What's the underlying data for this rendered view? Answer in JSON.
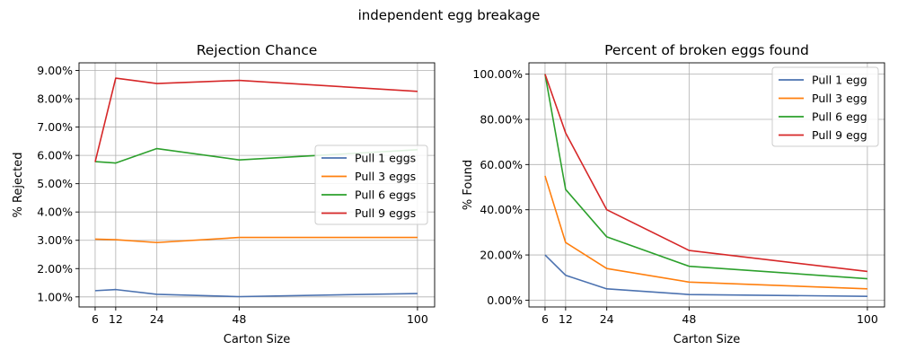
{
  "suptitle": "independent egg breakage",
  "chart_data": [
    {
      "type": "line",
      "title": "Rejection Chance",
      "xlabel": "Carton Size",
      "ylabel": "% Rejected",
      "x": [
        6,
        12,
        24,
        48,
        100
      ],
      "xticks": [
        "6",
        "12",
        "24",
        "48",
        "100"
      ],
      "xlim": [
        1.3,
        105.0
      ],
      "ylim": [
        0.00645,
        0.0927
      ],
      "yticks": [
        "1.00%",
        "2.00%",
        "3.00%",
        "4.00%",
        "5.00%",
        "6.00%",
        "7.00%",
        "8.00%",
        "9.00%"
      ],
      "ytick_values": [
        0.01,
        0.02,
        0.03,
        0.04,
        0.05,
        0.06,
        0.07,
        0.08,
        0.09
      ],
      "grid": true,
      "legend_position": "center-right",
      "series": [
        {
          "name": "Pull 1 eggs",
          "color": "#4c72b0",
          "values": [
            0.0122,
            0.0126,
            0.0109,
            0.0101,
            0.0112
          ]
        },
        {
          "name": "Pull 3 eggs",
          "color": "#ff7f0e",
          "values": [
            0.0304,
            0.0302,
            0.0292,
            0.031,
            0.031
          ]
        },
        {
          "name": "Pull 6 eggs",
          "color": "#2ca02c",
          "values": [
            0.0578,
            0.0573,
            0.0624,
            0.0584,
            0.062
          ]
        },
        {
          "name": "Pull 9 eggs",
          "color": "#d62728",
          "values": [
            0.0577,
            0.0873,
            0.0854,
            0.0865,
            0.0826
          ]
        }
      ]
    },
    {
      "type": "line",
      "title": "Percent of broken eggs found",
      "xlabel": "Carton Size",
      "ylabel": "% Found",
      "x": [
        6,
        12,
        24,
        48,
        100
      ],
      "xticks": [
        "6",
        "12",
        "24",
        "48",
        "100"
      ],
      "xlim": [
        1.3,
        105.0
      ],
      "ylim": [
        -0.03,
        1.05
      ],
      "yticks": [
        "0.00%",
        "20.00%",
        "40.00%",
        "60.00%",
        "80.00%",
        "100.00%"
      ],
      "ytick_values": [
        0.0,
        0.2,
        0.4,
        0.6,
        0.8,
        1.0
      ],
      "grid": true,
      "legend_position": "top-right",
      "series": [
        {
          "name": "Pull 1 egg",
          "color": "#4c72b0",
          "values": [
            0.2,
            0.11,
            0.05,
            0.025,
            0.017
          ]
        },
        {
          "name": "Pull 3 egg",
          "color": "#ff7f0e",
          "values": [
            0.55,
            0.255,
            0.14,
            0.08,
            0.05
          ]
        },
        {
          "name": "Pull 6 egg",
          "color": "#2ca02c",
          "values": [
            1.0,
            0.49,
            0.28,
            0.15,
            0.095
          ]
        },
        {
          "name": "Pull 9 egg",
          "color": "#d62728",
          "values": [
            1.0,
            0.74,
            0.4,
            0.22,
            0.127
          ]
        }
      ]
    }
  ]
}
